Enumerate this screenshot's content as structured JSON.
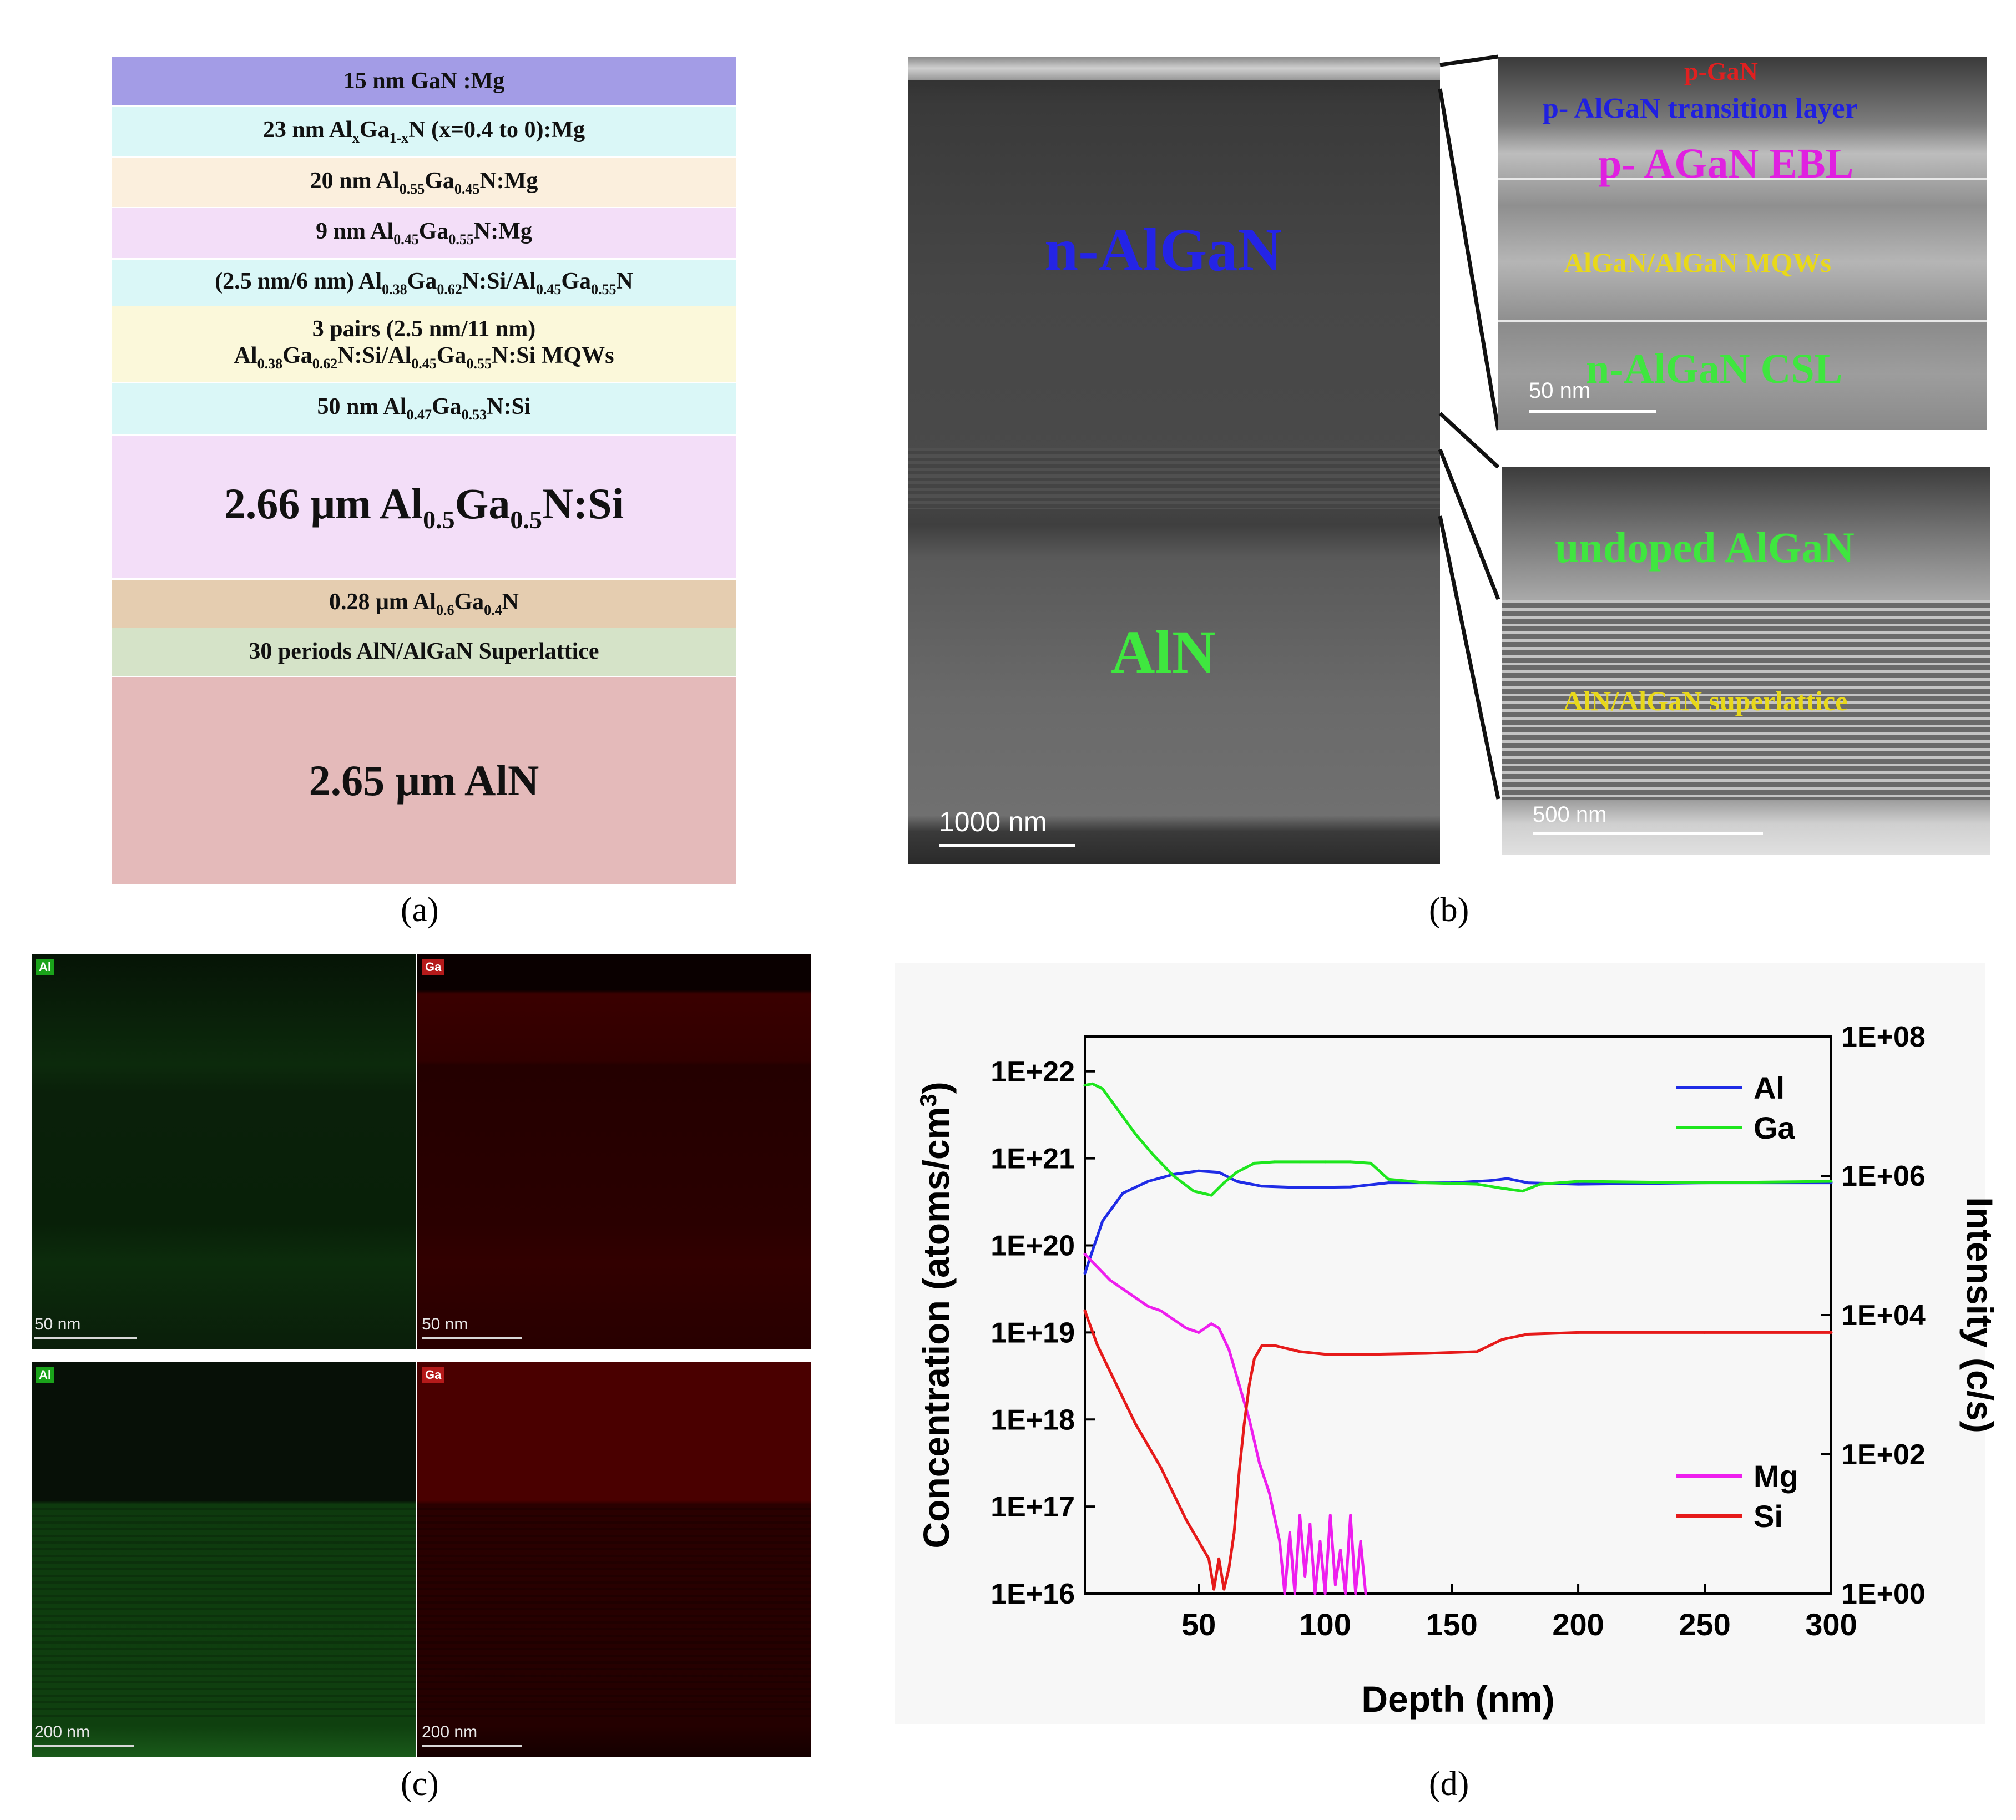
{
  "panel_a": {
    "layers": [
      {
        "parts": [
          [
            "15 nm  GaN :Mg",
            ""
          ]
        ],
        "color": "#a39ce6"
      },
      {
        "parts": [
          [
            "23 nm  Al",
            ""
          ],
          [
            "x",
            "sub"
          ],
          [
            "Ga",
            ""
          ],
          [
            "1-x",
            "sub"
          ],
          [
            "N (x=0.4  to   0):Mg",
            ""
          ]
        ],
        "color": "#daf7f7"
      },
      {
        "parts": [
          [
            "20 nm Al",
            ""
          ],
          [
            "0.55",
            "sub"
          ],
          [
            "Ga",
            ""
          ],
          [
            "0.45",
            "sub"
          ],
          [
            "N:Mg",
            ""
          ]
        ],
        "color": "#fbefdd"
      },
      {
        "parts": [
          [
            "9 nm Al",
            ""
          ],
          [
            "0.45",
            "sub"
          ],
          [
            "Ga",
            ""
          ],
          [
            "0.55",
            "sub"
          ],
          [
            "N:Mg",
            ""
          ]
        ],
        "color": "#f3def8"
      },
      {
        "parts": [
          [
            "(2.5 nm/6 nm) Al",
            ""
          ],
          [
            "0.38",
            "sub"
          ],
          [
            "Ga",
            ""
          ],
          [
            "0.62",
            "sub"
          ],
          [
            "N:Si/Al",
            ""
          ],
          [
            "0.45",
            "sub"
          ],
          [
            "Ga",
            ""
          ],
          [
            "0.55",
            "sub"
          ],
          [
            "N",
            ""
          ]
        ],
        "color": "#daf7f7"
      },
      {
        "parts": [
          [
            "3 pairs (2.5 nm/11 nm)",
            ""
          ],
          [
            "\n",
            "br"
          ],
          [
            "Al",
            ""
          ],
          [
            "0.38",
            "sub"
          ],
          [
            "Ga",
            ""
          ],
          [
            "0.62",
            "sub"
          ],
          [
            "N:Si/Al",
            ""
          ],
          [
            "0.45",
            "sub"
          ],
          [
            "Ga",
            ""
          ],
          [
            "0.55",
            "sub"
          ],
          [
            "N:Si MQWs",
            ""
          ]
        ],
        "color": "#fbf8da"
      },
      {
        "parts": [
          [
            "50 nm  Al",
            ""
          ],
          [
            "0.47",
            "sub"
          ],
          [
            "Ga",
            ""
          ],
          [
            "0.53",
            "sub"
          ],
          [
            "N:Si",
            ""
          ]
        ],
        "color": "#daf7f7"
      },
      {
        "parts": [
          [
            "2.66 μm Al",
            ""
          ],
          [
            "0.5",
            "sub"
          ],
          [
            "Ga",
            ""
          ],
          [
            "0.5",
            "sub"
          ],
          [
            "N:Si",
            ""
          ]
        ],
        "color": "#f3def8",
        "big": true
      },
      {
        "parts": [
          [
            "0.28 μm Al",
            ""
          ],
          [
            "0.6",
            "sub"
          ],
          [
            "Ga",
            ""
          ],
          [
            "0.4",
            "sub"
          ],
          [
            "N",
            ""
          ]
        ],
        "color": "#e5cdb0"
      },
      {
        "parts": [
          [
            "30 periods AlN/AlGaN Superlattice",
            ""
          ]
        ],
        "color": "#d5e3c8"
      },
      {
        "parts": [
          [
            "2.65 μm AlN",
            ""
          ]
        ],
        "color": "#e4baba",
        "big": true
      }
    ],
    "caption": "(a)"
  },
  "panel_b": {
    "label_nalgan": "n-AlGaN",
    "label_aln": "AlN",
    "scale_main": "1000 nm",
    "inset_top": {
      "p_gan": "p-GaN",
      "transition": "p- AlGaN  transition layer",
      "ebl": "p- AGaN EBL",
      "mqws": "AlGaN/AlGaN MQWs",
      "csl": "n-AlGaN  CSL",
      "scale": "50 nm"
    },
    "inset_bottom": {
      "undoped": "undoped AlGaN",
      "superlattice": "AlN/AlGaN superlattice",
      "scale": "500 nm"
    },
    "caption": "(b)"
  },
  "panel_c": {
    "top_left": {
      "element": "Al",
      "scale": "50 nm"
    },
    "top_right": {
      "element": "Ga",
      "scale": "50 nm"
    },
    "bottom_left": {
      "element": "Al",
      "scale": "200 nm"
    },
    "bottom_right": {
      "element": "Ga",
      "scale": "200 nm"
    },
    "caption": "(c)"
  },
  "panel_d": {
    "caption": "(d)",
    "chart_data": {
      "type": "line",
      "xlabel": "Depth (nm)",
      "ylabel": "Concentration (atoms/cm",
      "ylabel_sup": "3",
      "ylabel_close": ")",
      "y2label": "Intensity (c/s)",
      "xlim": [
        5,
        300
      ],
      "x_ticks": [
        50,
        100,
        150,
        200,
        250,
        300
      ],
      "x_tick_labels": [
        "50",
        "100",
        "150",
        "200",
        "250",
        "300"
      ],
      "ylim_log10": [
        16,
        22.4
      ],
      "y_ticks_log10": [
        16,
        17,
        18,
        19,
        20,
        21,
        22
      ],
      "y_tick_labels": [
        "1E+16",
        "1E+17",
        "1E+18",
        "1E+19",
        "1E+20",
        "1E+21",
        "1E+22"
      ],
      "y2lim_log10": [
        0,
        8
      ],
      "y2_ticks_log10": [
        0,
        2,
        4,
        6,
        8
      ],
      "y2_tick_labels": [
        "1E+00",
        "1E+02",
        "1E+04",
        "1E+06",
        "1E+08"
      ],
      "legend_top": [
        "Al",
        "Ga"
      ],
      "legend_bottom": [
        "Mg",
        "Si"
      ],
      "series": [
        {
          "name": "Al",
          "axis": "right",
          "color": "#1f2ce6",
          "x": [
            5,
            12,
            20,
            30,
            40,
            50,
            58,
            65,
            75,
            90,
            110,
            125,
            150,
            165,
            172,
            180,
            200,
            250,
            300
          ],
          "y": [
            4.6,
            5.35,
            5.75,
            5.92,
            6.02,
            6.07,
            6.05,
            5.92,
            5.85,
            5.83,
            5.84,
            5.9,
            5.9,
            5.93,
            5.96,
            5.9,
            5.88,
            5.9,
            5.9
          ]
        },
        {
          "name": "Ga",
          "axis": "right",
          "color": "#1ee61e",
          "x": [
            5,
            8,
            12,
            18,
            25,
            32,
            40,
            48,
            55,
            60,
            65,
            72,
            80,
            90,
            100,
            110,
            118,
            125,
            140,
            160,
            170,
            178,
            185,
            200,
            250,
            300
          ],
          "y": [
            7.3,
            7.32,
            7.25,
            6.95,
            6.6,
            6.3,
            6.0,
            5.78,
            5.72,
            5.9,
            6.05,
            6.18,
            6.2,
            6.2,
            6.2,
            6.2,
            6.18,
            5.95,
            5.9,
            5.88,
            5.82,
            5.78,
            5.88,
            5.92,
            5.9,
            5.92
          ]
        },
        {
          "name": "Mg",
          "axis": "left",
          "color": "#ee1eee",
          "x": [
            5,
            10,
            15,
            20,
            25,
            30,
            35,
            40,
            45,
            50,
            55,
            58,
            62,
            66,
            70,
            74,
            78,
            82,
            84,
            86,
            88,
            90,
            92,
            94,
            96,
            98,
            100,
            102,
            104,
            106,
            108,
            110,
            112,
            114,
            116
          ],
          "y": [
            19.9,
            19.75,
            19.6,
            19.5,
            19.4,
            19.3,
            19.25,
            19.15,
            19.05,
            19.0,
            19.1,
            19.05,
            18.8,
            18.4,
            18.0,
            17.5,
            17.15,
            16.6,
            16.0,
            16.7,
            16.0,
            16.9,
            16.2,
            16.8,
            16.0,
            16.6,
            16.0,
            16.9,
            16.1,
            16.5,
            16.0,
            16.9,
            16.0,
            16.6,
            16.0
          ]
        },
        {
          "name": "Si",
          "axis": "left",
          "color": "#e61a1a",
          "x": [
            5,
            10,
            15,
            20,
            25,
            30,
            35,
            40,
            45,
            50,
            54,
            56,
            58,
            60,
            62,
            64,
            66,
            68,
            70,
            72,
            75,
            80,
            90,
            100,
            120,
            140,
            160,
            170,
            180,
            200,
            250,
            300
          ],
          "y": [
            19.25,
            18.85,
            18.55,
            18.25,
            17.95,
            17.7,
            17.45,
            17.15,
            16.85,
            16.6,
            16.4,
            16.05,
            16.4,
            16.05,
            16.3,
            16.7,
            17.4,
            17.95,
            18.4,
            18.7,
            18.85,
            18.85,
            18.78,
            18.75,
            18.75,
            18.76,
            18.78,
            18.92,
            18.98,
            19.0,
            19.0,
            19.0
          ]
        }
      ]
    }
  }
}
